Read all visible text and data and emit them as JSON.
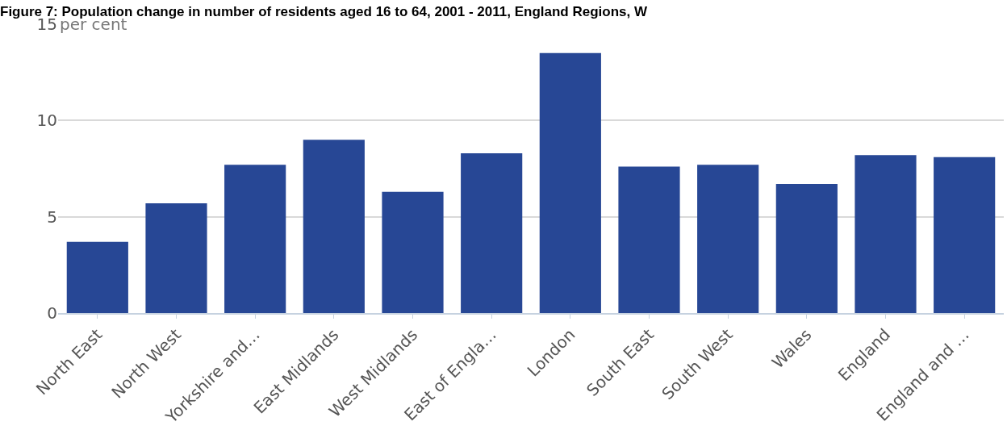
{
  "chart_data": {
    "type": "bar",
    "title": "Figure 7: Population change in number of residents aged 16 to 64, 2001 - 2011, England Regions, W",
    "ylabel": "per cent",
    "categories": [
      "North East",
      "North West",
      "Yorkshire and…",
      "East Midlands",
      "West Midlands",
      "East of Engla…",
      "London",
      "South East",
      "South West",
      "Wales",
      "England",
      "England and …"
    ],
    "values": [
      3.7,
      5.7,
      7.7,
      9.0,
      6.3,
      8.3,
      13.5,
      7.6,
      7.7,
      6.7,
      8.2,
      8.1
    ],
    "color": "#274795",
    "ylim": [
      0,
      15
    ],
    "yticks": [
      0,
      5,
      10,
      15
    ],
    "grid": "y",
    "legend": false
  }
}
